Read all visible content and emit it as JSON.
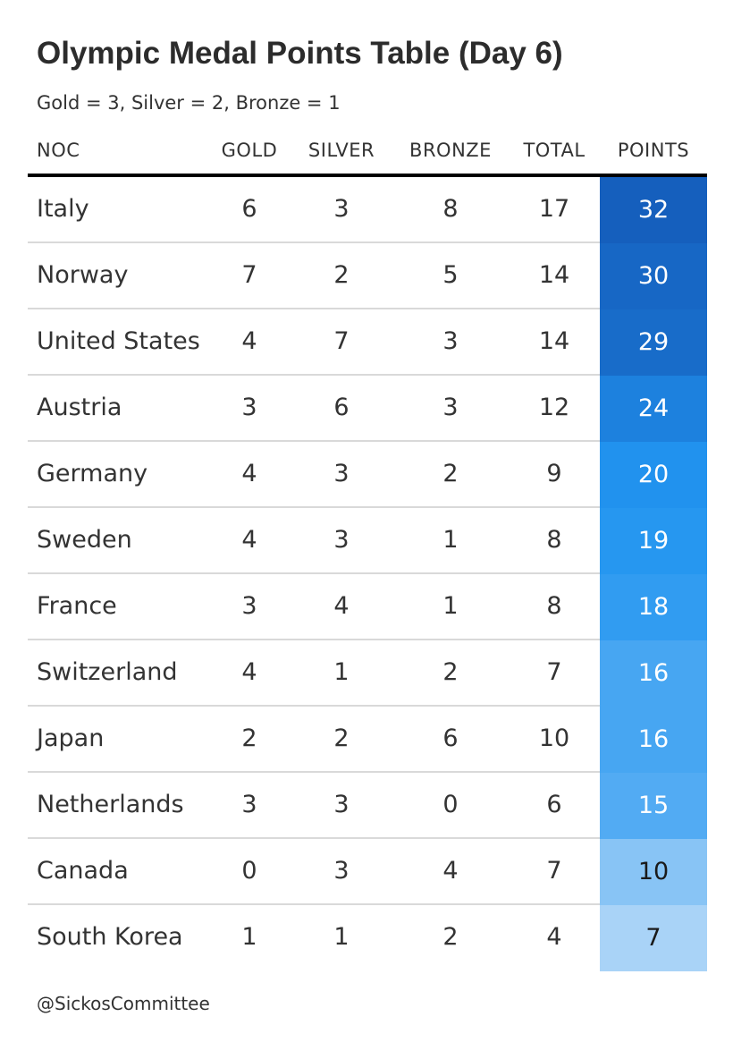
{
  "title": "Olympic Medal Points Table (Day 6)",
  "subtitle": "Gold = 3, Silver = 2, Bronze = 1",
  "footer": "@SickosCommittee",
  "colors": {
    "text": "#333333",
    "header_rule": "#000000",
    "row_rule": "#d9d9d9",
    "points_scale_low": "#a9d3f7",
    "points_scale_high": "#155fbd"
  },
  "chart_data": {
    "type": "table",
    "columns": [
      "NOC",
      "GOLD",
      "SILVER",
      "BRONZE",
      "TOTAL",
      "POINTS"
    ],
    "rows": [
      {
        "noc": "Italy",
        "gold": 6,
        "silver": 3,
        "bronze": 8,
        "total": 17,
        "points": 32
      },
      {
        "noc": "Norway",
        "gold": 7,
        "silver": 2,
        "bronze": 5,
        "total": 14,
        "points": 30
      },
      {
        "noc": "United States",
        "gold": 4,
        "silver": 7,
        "bronze": 3,
        "total": 14,
        "points": 29
      },
      {
        "noc": "Austria",
        "gold": 3,
        "silver": 6,
        "bronze": 3,
        "total": 12,
        "points": 24
      },
      {
        "noc": "Germany",
        "gold": 4,
        "silver": 3,
        "bronze": 2,
        "total": 9,
        "points": 20
      },
      {
        "noc": "Sweden",
        "gold": 4,
        "silver": 3,
        "bronze": 1,
        "total": 8,
        "points": 19
      },
      {
        "noc": "France",
        "gold": 3,
        "silver": 4,
        "bronze": 1,
        "total": 8,
        "points": 18
      },
      {
        "noc": "Switzerland",
        "gold": 4,
        "silver": 1,
        "bronze": 2,
        "total": 7,
        "points": 16
      },
      {
        "noc": "Japan",
        "gold": 2,
        "silver": 2,
        "bronze": 6,
        "total": 10,
        "points": 16
      },
      {
        "noc": "Netherlands",
        "gold": 3,
        "silver": 3,
        "bronze": 0,
        "total": 6,
        "points": 15
      },
      {
        "noc": "Canada",
        "gold": 0,
        "silver": 3,
        "bronze": 4,
        "total": 7,
        "points": 10
      },
      {
        "noc": "South Korea",
        "gold": 1,
        "silver": 1,
        "bronze": 2,
        "total": 4,
        "points": 7
      }
    ]
  }
}
